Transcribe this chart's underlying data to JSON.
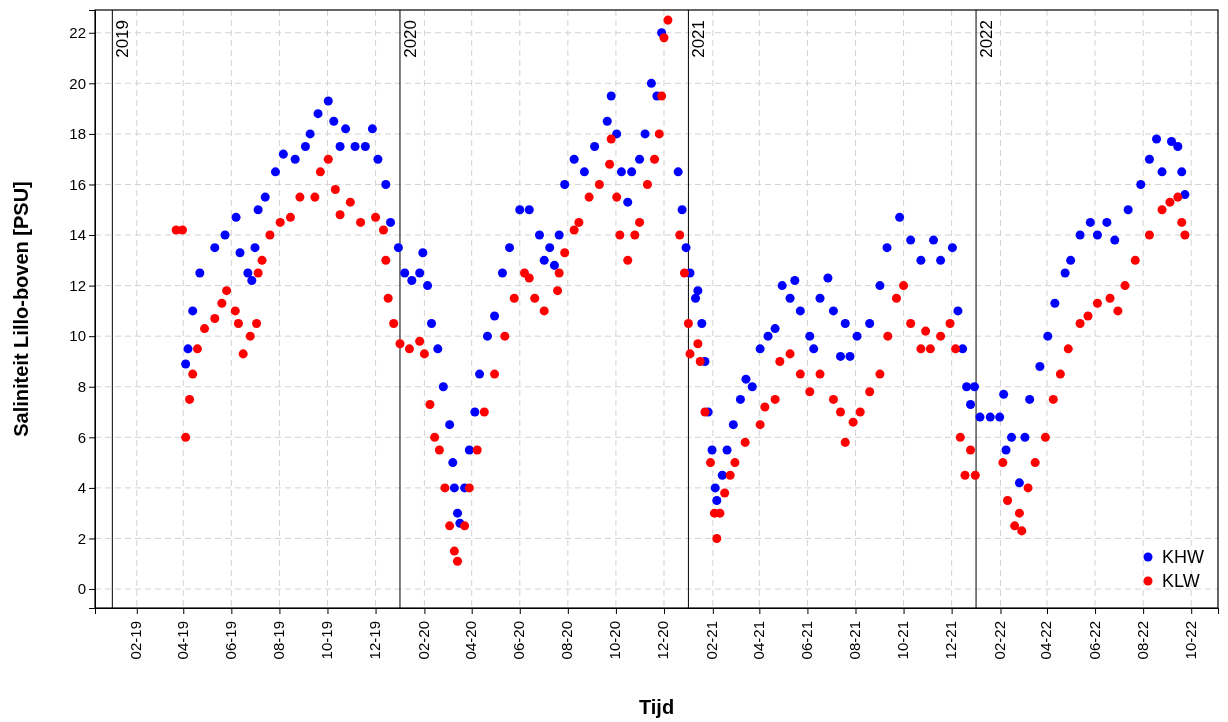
{
  "chart_data": {
    "type": "scatter",
    "xlabel": "Tijd",
    "ylabel": "Saliniteit Lillo-boven [PSU]",
    "xlim": [
      "2018-12-10",
      "2022-11-04"
    ],
    "ylim": [
      -0.75,
      22.9
    ],
    "xticks": [
      {
        "value": "2019-02-01",
        "label": "02-19"
      },
      {
        "value": "2019-04-01",
        "label": "04-19"
      },
      {
        "value": "2019-06-01",
        "label": "06-19"
      },
      {
        "value": "2019-08-01",
        "label": "08-19"
      },
      {
        "value": "2019-10-01",
        "label": "10-19"
      },
      {
        "value": "2019-12-01",
        "label": "12-19"
      },
      {
        "value": "2020-02-01",
        "label": "02-20"
      },
      {
        "value": "2020-04-01",
        "label": "04-20"
      },
      {
        "value": "2020-06-01",
        "label": "06-20"
      },
      {
        "value": "2020-08-01",
        "label": "08-20"
      },
      {
        "value": "2020-10-01",
        "label": "10-20"
      },
      {
        "value": "2020-12-01",
        "label": "12-20"
      },
      {
        "value": "2021-02-01",
        "label": "02-21"
      },
      {
        "value": "2021-04-01",
        "label": "04-21"
      },
      {
        "value": "2021-06-01",
        "label": "06-21"
      },
      {
        "value": "2021-08-01",
        "label": "08-21"
      },
      {
        "value": "2021-10-01",
        "label": "10-21"
      },
      {
        "value": "2021-12-01",
        "label": "12-21"
      },
      {
        "value": "2022-02-01",
        "label": "02-22"
      },
      {
        "value": "2022-04-01",
        "label": "04-22"
      },
      {
        "value": "2022-06-01",
        "label": "06-22"
      },
      {
        "value": "2022-08-01",
        "label": "08-22"
      },
      {
        "value": "2022-10-01",
        "label": "10-22"
      }
    ],
    "yticks": [
      0,
      2,
      4,
      6,
      8,
      10,
      12,
      14,
      16,
      18,
      20,
      22
    ],
    "grid": true,
    "legend": "bottom right",
    "marker": "circle",
    "ref_lines": [
      {
        "axis": "x",
        "value": "2019-01-01",
        "label": "2019",
        "color": "#000000"
      },
      {
        "axis": "x",
        "value": "2020-01-01",
        "label": "2020",
        "color": "#000000"
      },
      {
        "axis": "x",
        "value": "2021-01-01",
        "label": "2021",
        "color": "#000000"
      },
      {
        "axis": "x",
        "value": "2022-01-01",
        "label": "2022",
        "color": "#000000"
      }
    ],
    "series": [
      {
        "name": "KHW",
        "color": "#0000ff",
        "x": [
          "2019-04-04",
          "2019-04-07",
          "2019-04-13",
          "2019-04-22",
          "2019-05-11",
          "2019-05-24",
          "2019-06-07",
          "2019-06-12",
          "2019-06-22",
          "2019-06-27",
          "2019-07-01",
          "2019-07-05",
          "2019-07-14",
          "2019-07-27",
          "2019-08-06",
          "2019-08-21",
          "2019-09-03",
          "2019-09-09",
          "2019-09-19",
          "2019-10-02",
          "2019-10-09",
          "2019-10-17",
          "2019-10-24",
          "2019-11-05",
          "2019-11-18",
          "2019-11-27",
          "2019-12-04",
          "2019-12-14",
          "2019-12-20",
          "2019-12-30",
          "2020-01-07",
          "2020-01-16",
          "2020-01-26",
          "2020-01-30",
          "2020-02-05",
          "2020-02-10",
          "2020-02-18",
          "2020-02-25",
          "2020-03-04",
          "2020-03-08",
          "2020-03-10",
          "2020-03-14",
          "2020-03-17",
          "2020-03-23",
          "2020-03-29",
          "2020-04-05",
          "2020-04-11",
          "2020-04-21",
          "2020-04-30",
          "2020-05-10",
          "2020-05-19",
          "2020-06-01",
          "2020-06-13",
          "2020-06-26",
          "2020-07-02",
          "2020-07-09",
          "2020-07-15",
          "2020-07-21",
          "2020-07-28",
          "2020-08-09",
          "2020-08-22",
          "2020-09-04",
          "2020-09-20",
          "2020-09-25",
          "2020-10-02",
          "2020-10-08",
          "2020-10-16",
          "2020-10-21",
          "2020-10-31",
          "2020-11-07",
          "2020-11-15",
          "2020-11-22",
          "2020-11-28",
          "2020-12-19",
          "2020-12-24",
          "2020-12-29",
          "2021-01-03",
          "2021-01-10",
          "2021-01-13",
          "2021-01-18",
          "2021-01-22",
          "2021-01-26",
          "2021-01-31",
          "2021-02-04",
          "2021-02-06",
          "2021-02-13",
          "2021-02-19",
          "2021-02-27",
          "2021-03-08",
          "2021-03-15",
          "2021-03-23",
          "2021-04-02",
          "2021-04-12",
          "2021-04-21",
          "2021-04-30",
          "2021-05-10",
          "2021-05-16",
          "2021-05-23",
          "2021-06-04",
          "2021-06-09",
          "2021-06-17",
          "2021-06-27",
          "2021-07-04",
          "2021-07-13",
          "2021-07-19",
          "2021-07-25",
          "2021-08-03",
          "2021-08-19",
          "2021-09-01",
          "2021-09-10",
          "2021-09-26",
          "2021-10-10",
          "2021-10-23",
          "2021-11-08",
          "2021-11-17",
          "2021-12-02",
          "2021-12-09",
          "2021-12-15",
          "2021-12-20",
          "2021-12-25",
          "2021-12-30",
          "2022-01-06",
          "2022-01-19",
          "2022-01-31",
          "2022-02-05",
          "2022-02-08",
          "2022-02-15",
          "2022-02-25",
          "2022-03-04",
          "2022-03-10",
          "2022-03-23",
          "2022-04-02",
          "2022-04-11",
          "2022-04-24",
          "2022-05-01",
          "2022-05-13",
          "2022-05-26",
          "2022-06-04",
          "2022-06-16",
          "2022-06-26",
          "2022-07-13",
          "2022-07-29",
          "2022-08-09",
          "2022-08-18",
          "2022-08-25",
          "2022-09-06",
          "2022-09-14",
          "2022-09-19",
          "2022-09-23"
        ],
        "values": [
          8.9,
          9.5,
          11,
          12.5,
          13.5,
          14,
          14.7,
          13.3,
          12.5,
          12.2,
          13.5,
          15,
          15.5,
          16.5,
          17.2,
          17,
          17.5,
          18,
          18.8,
          19.3,
          18.5,
          17.5,
          18.2,
          17.5,
          17.5,
          18.2,
          17,
          16,
          14.5,
          13.5,
          12.5,
          12.2,
          12.5,
          13.3,
          12,
          10.5,
          9.5,
          8,
          6.5,
          5,
          4,
          3,
          2.6,
          4,
          5.5,
          7,
          8.5,
          10,
          10.8,
          12.5,
          13.5,
          15,
          15,
          14,
          13,
          13.5,
          12.8,
          14,
          16,
          17,
          16.5,
          17.5,
          18.5,
          19.5,
          18,
          16.5,
          15.3,
          16.5,
          17,
          18,
          20,
          19.5,
          22,
          16.5,
          15,
          13.5,
          12.5,
          11.5,
          11.8,
          10.5,
          9,
          7,
          5.5,
          4,
          3.5,
          4.5,
          5.5,
          6.5,
          7.5,
          8.3,
          8,
          9.5,
          10,
          10.3,
          12,
          11.5,
          12.2,
          11,
          10,
          9.5,
          11.5,
          12.3,
          11,
          9.2,
          10.5,
          9.2,
          10,
          10.5,
          12,
          13.5,
          14.7,
          13.8,
          13,
          13.8,
          13,
          13.5,
          11,
          9.5,
          8,
          7.3,
          8,
          6.8,
          6.8,
          6.8,
          7.7,
          5.5,
          6,
          4.2,
          6,
          7.5,
          8.8,
          10,
          11.3,
          12.5,
          13,
          14,
          14.5,
          14,
          14.5,
          13.8,
          15,
          16,
          17,
          17.8,
          16.5,
          17.7,
          17.5,
          16.5,
          15.6
        ]
      },
      {
        "name": "KLW",
        "color": "#ff0000",
        "x": [
          "2019-03-23",
          "2019-03-31",
          "2019-04-04",
          "2019-04-09",
          "2019-04-13",
          "2019-04-19",
          "2019-04-28",
          "2019-05-11",
          "2019-05-20",
          "2019-05-26",
          "2019-06-06",
          "2019-06-10",
          "2019-06-16",
          "2019-06-25",
          "2019-07-03",
          "2019-07-05",
          "2019-07-10",
          "2019-07-20",
          "2019-08-02",
          "2019-08-15",
          "2019-08-27",
          "2019-09-15",
          "2019-09-22",
          "2019-10-02",
          "2019-10-11",
          "2019-10-17",
          "2019-10-30",
          "2019-11-12",
          "2019-12-01",
          "2019-12-11",
          "2019-12-14",
          "2019-12-17",
          "2019-12-24",
          "2020-01-01",
          "2020-01-13",
          "2020-01-26",
          "2020-02-01",
          "2020-02-08",
          "2020-02-14",
          "2020-02-20",
          "2020-02-27",
          "2020-03-04",
          "2020-03-10",
          "2020-03-14",
          "2020-03-23",
          "2020-03-29",
          "2020-04-08",
          "2020-04-17",
          "2020-04-30",
          "2020-05-13",
          "2020-05-25",
          "2020-06-07",
          "2020-06-13",
          "2020-06-20",
          "2020-07-02",
          "2020-07-19",
          "2020-07-21",
          "2020-07-28",
          "2020-08-09",
          "2020-08-15",
          "2020-08-28",
          "2020-09-10",
          "2020-09-23",
          "2020-09-25",
          "2020-10-02",
          "2020-10-06",
          "2020-10-16",
          "2020-10-25",
          "2020-10-31",
          "2020-11-10",
          "2020-11-19",
          "2020-11-25",
          "2020-11-28",
          "2020-12-01",
          "2020-12-06",
          "2020-12-21",
          "2020-12-27",
          "2021-01-01",
          "2021-01-03",
          "2021-01-13",
          "2021-01-16",
          "2021-01-22",
          "2021-01-29",
          "2021-02-03",
          "2021-02-06",
          "2021-02-10",
          "2021-02-16",
          "2021-02-23",
          "2021-03-01",
          "2021-03-14",
          "2021-04-02",
          "2021-04-08",
          "2021-04-21",
          "2021-04-27",
          "2021-05-10",
          "2021-05-23",
          "2021-06-04",
          "2021-06-17",
          "2021-07-04",
          "2021-07-13",
          "2021-07-19",
          "2021-07-29",
          "2021-08-07",
          "2021-08-19",
          "2021-09-01",
          "2021-09-11",
          "2021-09-22",
          "2021-10-01",
          "2021-10-10",
          "2021-10-23",
          "2021-10-29",
          "2021-11-04",
          "2021-11-17",
          "2021-11-29",
          "2021-12-06",
          "2021-12-12",
          "2021-12-18",
          "2021-12-25",
          "2021-12-31",
          "2022-02-04",
          "2022-02-10",
          "2022-02-19",
          "2022-02-25",
          "2022-02-28",
          "2022-03-08",
          "2022-03-17",
          "2022-03-30",
          "2022-04-09",
          "2022-04-18",
          "2022-04-28",
          "2022-05-13",
          "2022-05-23",
          "2022-06-04",
          "2022-06-20",
          "2022-06-30",
          "2022-07-09",
          "2022-07-22",
          "2022-08-09",
          "2022-08-25",
          "2022-09-04",
          "2022-09-14",
          "2022-09-19",
          "2022-09-23"
        ],
        "values": [
          14.2,
          14.2,
          6,
          7.5,
          8.5,
          9.5,
          10.3,
          10.7,
          11.3,
          11.8,
          11,
          10.5,
          9.3,
          10,
          10.5,
          12.5,
          13,
          14,
          14.5,
          14.7,
          15.5,
          15.5,
          16.5,
          17,
          15.8,
          14.8,
          15.3,
          14.5,
          14.7,
          14.2,
          13,
          11.5,
          10.5,
          9.7,
          9.5,
          9.8,
          9.3,
          7.3,
          6,
          5.5,
          4,
          2.5,
          1.5,
          1.1,
          2.5,
          4,
          5.5,
          7,
          8.5,
          10,
          11.5,
          12.5,
          12.3,
          11.5,
          11,
          11.8,
          12.5,
          13.3,
          14.2,
          14.5,
          15.5,
          16,
          16.8,
          17.8,
          15.5,
          14,
          13,
          14,
          14.5,
          16,
          17,
          18,
          19.5,
          21.8,
          22.5,
          14,
          12.5,
          10.5,
          9.3,
          9.7,
          9,
          7,
          5,
          3,
          2,
          3,
          3.8,
          4.5,
          5,
          5.8,
          6.5,
          7.2,
          7.5,
          9,
          9.3,
          8.5,
          7.8,
          8.5,
          7.5,
          7,
          5.8,
          6.6,
          7,
          7.8,
          8.5,
          10,
          11.5,
          12,
          10.5,
          9.5,
          10.2,
          9.5,
          10,
          10.5,
          9.5,
          6,
          4.5,
          5.5,
          4.5,
          5,
          3.5,
          2.5,
          3,
          2.3,
          4,
          5,
          6,
          7.5,
          8.5,
          9.5,
          10.5,
          10.8,
          11.3,
          11.5,
          11,
          12,
          13,
          14,
          15,
          15.3,
          15.5,
          14.5,
          14
        ]
      }
    ]
  }
}
